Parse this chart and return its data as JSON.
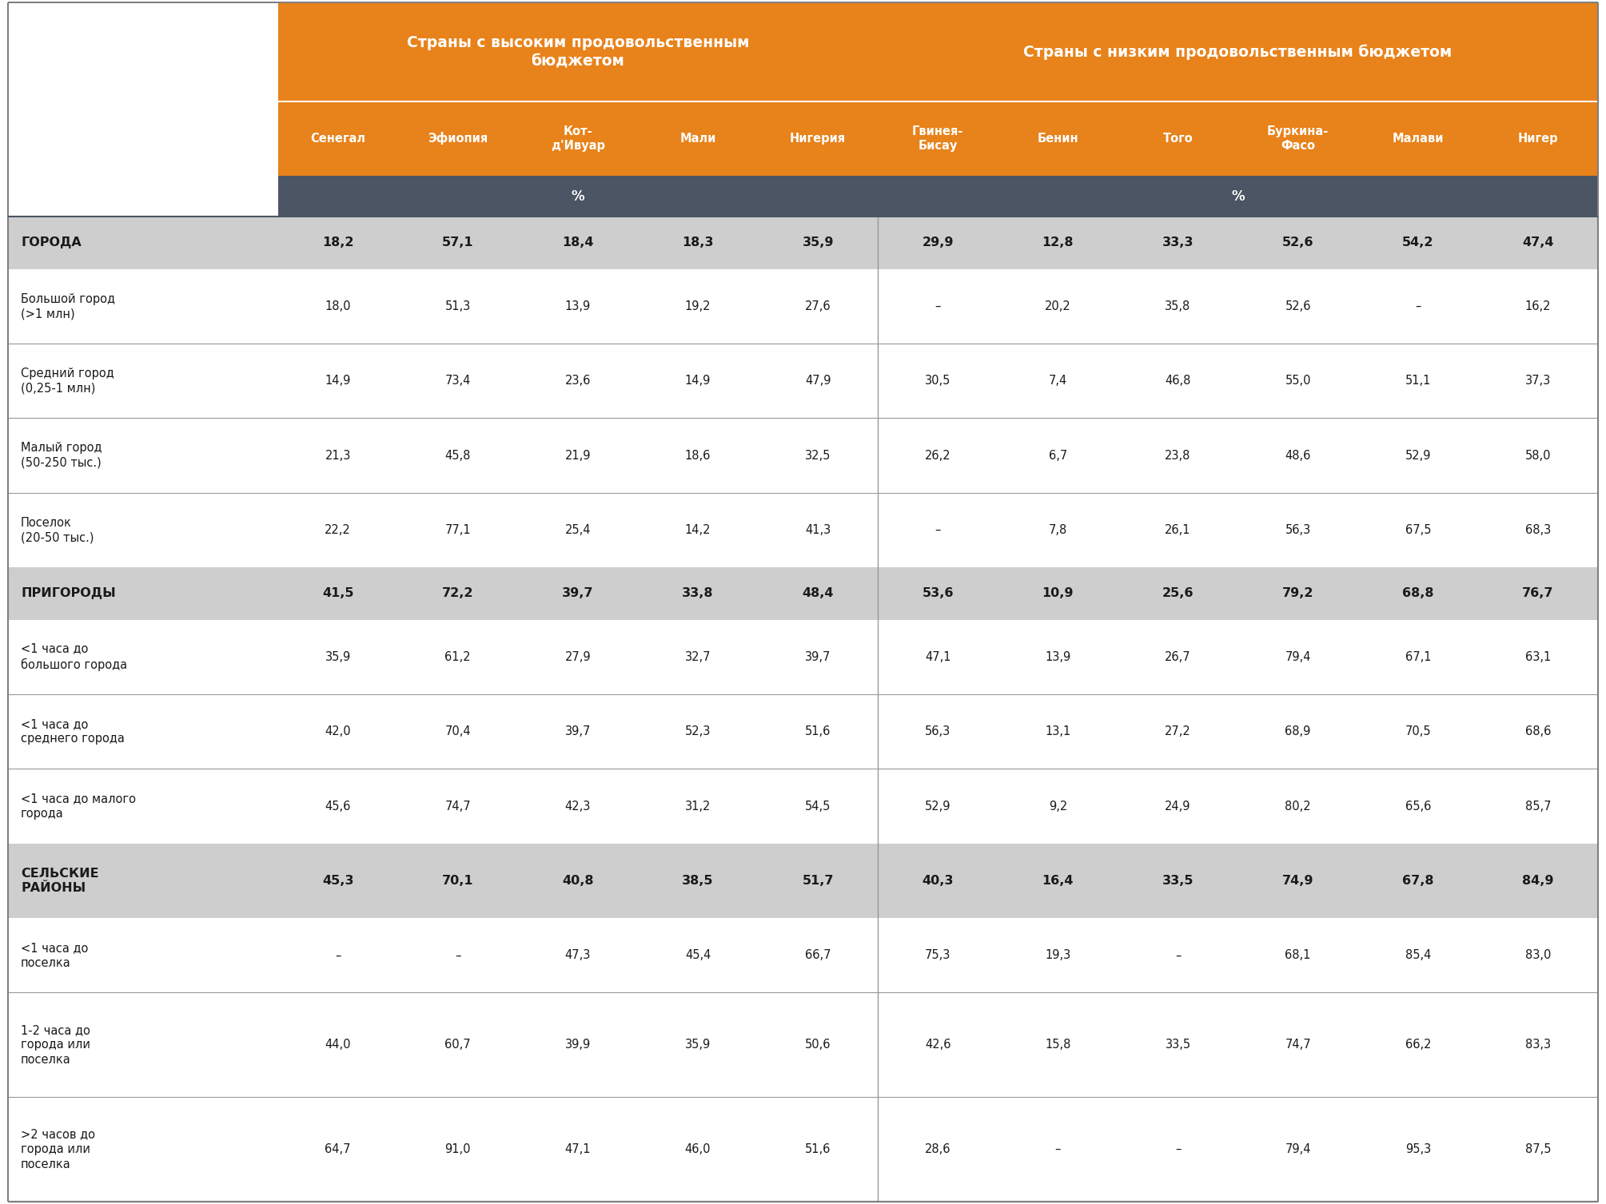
{
  "header1": "Страны с высоким продовольственным\nбюджетом",
  "header2": "Страны с низким продовольственным бюджетом",
  "col_headers": [
    "Сенегал",
    "Эфиопия",
    "Кот-\nд'Ивуар",
    "Мали",
    "Нигерия",
    "Гвинея-\nБисау",
    "Бенин",
    "Того",
    "Буркина-\nФасо",
    "Малави",
    "Нигер"
  ],
  "pct_label": "%",
  "rows": [
    {
      "label": "ГОРОДА",
      "bold": true,
      "shaded": true,
      "values": [
        "18,2",
        "57,1",
        "18,4",
        "18,3",
        "35,9",
        "29,9",
        "12,8",
        "33,3",
        "52,6",
        "54,2",
        "47,4"
      ]
    },
    {
      "label": "Большой город\n(>1 млн)",
      "bold": false,
      "shaded": false,
      "values": [
        "18,0",
        "51,3",
        "13,9",
        "19,2",
        "27,6",
        "–",
        "20,2",
        "35,8",
        "52,6",
        "–",
        "16,2"
      ]
    },
    {
      "label": "Средний город\n(0,25-1 млн)",
      "bold": false,
      "shaded": false,
      "values": [
        "14,9",
        "73,4",
        "23,6",
        "14,9",
        "47,9",
        "30,5",
        "7,4",
        "46,8",
        "55,0",
        "51,1",
        "37,3"
      ]
    },
    {
      "label": "Малый город\n(50-250 тыс.)",
      "bold": false,
      "shaded": false,
      "values": [
        "21,3",
        "45,8",
        "21,9",
        "18,6",
        "32,5",
        "26,2",
        "6,7",
        "23,8",
        "48,6",
        "52,9",
        "58,0"
      ]
    },
    {
      "label": "Поселок\n(20-50 тыс.)",
      "bold": false,
      "shaded": false,
      "values": [
        "22,2",
        "77,1",
        "25,4",
        "14,2",
        "41,3",
        "–",
        "7,8",
        "26,1",
        "56,3",
        "67,5",
        "68,3"
      ]
    },
    {
      "label": "ПРИГОРОДЫ",
      "bold": true,
      "shaded": true,
      "values": [
        "41,5",
        "72,2",
        "39,7",
        "33,8",
        "48,4",
        "53,6",
        "10,9",
        "25,6",
        "79,2",
        "68,8",
        "76,7"
      ]
    },
    {
      "label": "<1 часа до\nбольшого города",
      "bold": false,
      "shaded": false,
      "values": [
        "35,9",
        "61,2",
        "27,9",
        "32,7",
        "39,7",
        "47,1",
        "13,9",
        "26,7",
        "79,4",
        "67,1",
        "63,1"
      ]
    },
    {
      "label": "<1 часа до\nсреднего города",
      "bold": false,
      "shaded": false,
      "values": [
        "42,0",
        "70,4",
        "39,7",
        "52,3",
        "51,6",
        "56,3",
        "13,1",
        "27,2",
        "68,9",
        "70,5",
        "68,6"
      ]
    },
    {
      "label": "<1 часа до малого\nгорода",
      "bold": false,
      "shaded": false,
      "values": [
        "45,6",
        "74,7",
        "42,3",
        "31,2",
        "54,5",
        "52,9",
        "9,2",
        "24,9",
        "80,2",
        "65,6",
        "85,7"
      ]
    },
    {
      "label": "СЕЛЬСКИЕ\nРАЙОНЫ",
      "bold": true,
      "shaded": true,
      "values": [
        "45,3",
        "70,1",
        "40,8",
        "38,5",
        "51,7",
        "40,3",
        "16,4",
        "33,5",
        "74,9",
        "67,8",
        "84,9"
      ]
    },
    {
      "label": "<1 часа до\nпоселка",
      "bold": false,
      "shaded": false,
      "values": [
        "–",
        "–",
        "47,3",
        "45,4",
        "66,7",
        "75,3",
        "19,3",
        "–",
        "68,1",
        "85,4",
        "83,0"
      ]
    },
    {
      "label": "1-2 часа до\nгорода или\nпоселка",
      "bold": false,
      "shaded": false,
      "values": [
        "44,0",
        "60,7",
        "39,9",
        "35,9",
        "50,6",
        "42,6",
        "15,8",
        "33,5",
        "74,7",
        "66,2",
        "83,3"
      ]
    },
    {
      "label": ">2 часов до\nгорода или\nпоселка",
      "bold": false,
      "shaded": false,
      "values": [
        "64,7",
        "91,0",
        "47,1",
        "46,0",
        "51,6",
        "28,6",
        "–",
        "–",
        "79,4",
        "95,3",
        "87,5"
      ]
    }
  ],
  "orange_color": "#E8821A",
  "dark_header_color": "#4B5563",
  "shaded_row_color": "#CECECE",
  "white_color": "#FFFFFF",
  "text_dark": "#1A1A1A",
  "border_color": "#808080",
  "line_color": "#999999",
  "n_high_budget_cols": 5,
  "n_low_budget_cols": 6,
  "row_heights_raw": [
    1.4,
    2.0,
    2.0,
    2.0,
    2.0,
    1.4,
    2.0,
    2.0,
    2.0,
    2.0,
    2.0,
    2.8,
    2.8
  ]
}
